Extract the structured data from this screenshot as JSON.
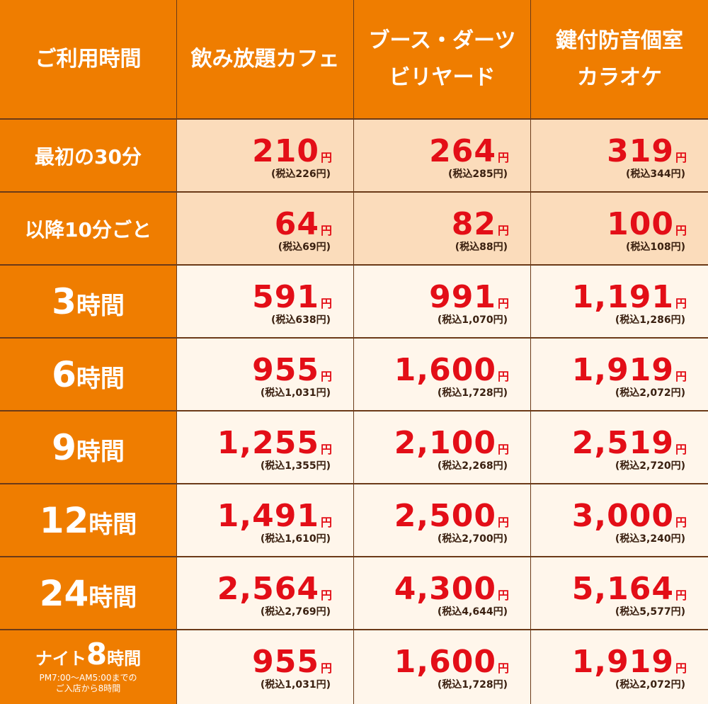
{
  "headers": {
    "time": "ご利用時間",
    "cafe": "飲み放題カフェ",
    "booth_line1": "ブース・ダーツ",
    "booth_line2": "ビリヤード",
    "room_line1": "鍵付防音個室",
    "room_line2": "カラオケ"
  },
  "currency": "円",
  "rows": [
    {
      "label": "最初の30分",
      "cafe": {
        "price": "210",
        "tax": "(税込226円)"
      },
      "booth": {
        "price": "264",
        "tax": "(税込285円)"
      },
      "room": {
        "price": "319",
        "tax": "(税込344円)"
      }
    },
    {
      "label": "以降10分ごと",
      "cafe": {
        "price": "64",
        "tax": "(税込69円)"
      },
      "booth": {
        "price": "82",
        "tax": "(税込88円)"
      },
      "room": {
        "price": "100",
        "tax": "(税込108円)"
      }
    },
    {
      "label_num": "3",
      "label_unit": "時間",
      "cafe": {
        "price": "591",
        "tax": "(税込638円)"
      },
      "booth": {
        "price": "991",
        "tax": "(税込1,070円)"
      },
      "room": {
        "price": "1,191",
        "tax": "(税込1,286円)"
      }
    },
    {
      "label_num": "6",
      "label_unit": "時間",
      "cafe": {
        "price": "955",
        "tax": "(税込1,031円)"
      },
      "booth": {
        "price": "1,600",
        "tax": "(税込1,728円)"
      },
      "room": {
        "price": "1,919",
        "tax": "(税込2,072円)"
      }
    },
    {
      "label_num": "9",
      "label_unit": "時間",
      "cafe": {
        "price": "1,255",
        "tax": "(税込1,355円)"
      },
      "booth": {
        "price": "2,100",
        "tax": "(税込2,268円)"
      },
      "room": {
        "price": "2,519",
        "tax": "(税込2,720円)"
      }
    },
    {
      "label_num": "12",
      "label_unit": "時間",
      "cafe": {
        "price": "1,491",
        "tax": "(税込1,610円)"
      },
      "booth": {
        "price": "2,500",
        "tax": "(税込2,700円)"
      },
      "room": {
        "price": "3,000",
        "tax": "(税込3,240円)"
      }
    },
    {
      "label_num": "24",
      "label_unit": "時間",
      "cafe": {
        "price": "2,564",
        "tax": "(税込2,769円)"
      },
      "booth": {
        "price": "4,300",
        "tax": "(税込4,644円)"
      },
      "room": {
        "price": "5,164",
        "tax": "(税込5,577円)"
      }
    },
    {
      "label_prefix": "ナイト",
      "label_num": "8",
      "label_unit": "時間",
      "note_line1": "PM7:00〜AM5:00までの",
      "note_line2": "ご入店から8時間",
      "cafe": {
        "price": "955",
        "tax": "(税込1,031円)"
      },
      "booth": {
        "price": "1,600",
        "tax": "(税込1,728円)"
      },
      "room": {
        "price": "1,919",
        "tax": "(税込2,072円)"
      }
    }
  ]
}
